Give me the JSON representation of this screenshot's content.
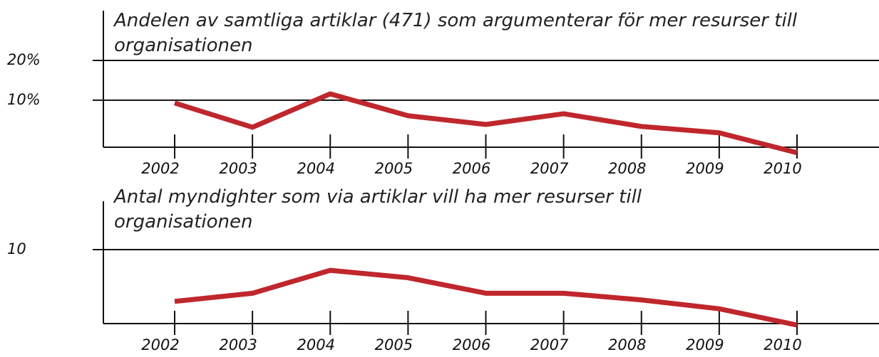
{
  "chart_data": [
    {
      "type": "line",
      "title": "Andelen av samtliga artiklar (471) som argumenterar för mer resurser till organisationen",
      "categories": [
        "2002",
        "2003",
        "2004",
        "2005",
        "2006",
        "2007",
        "2008",
        "2009",
        "2010"
      ],
      "series": [
        {
          "color": "#c0272d",
          "values": [
            9.3,
            3.2,
            11.6,
            6.1,
            3.9,
            6.6,
            3.4,
            1.8,
            -3.2
          ]
        }
      ],
      "ylim": [
        -2,
        20
      ],
      "yticks": [
        {
          "value": 10,
          "label": "10%"
        },
        {
          "value": 20,
          "label": "20%"
        }
      ],
      "grid": true
    },
    {
      "type": "line",
      "title": "Antal myndighter som via artiklar vill ha mer resurser till organisationen",
      "categories": [
        "2002",
        "2003",
        "2004",
        "2005",
        "2006",
        "2007",
        "2008",
        "2009",
        "2010"
      ],
      "series": [
        {
          "color": "#c0272d",
          "values": [
            3.0,
            4.1,
            7.2,
            6.2,
            4.1,
            4.1,
            3.2,
            2.0,
            -0.2
          ]
        }
      ],
      "ylim": [
        0,
        10
      ],
      "yticks": [
        10
      ],
      "grid": true
    }
  ]
}
